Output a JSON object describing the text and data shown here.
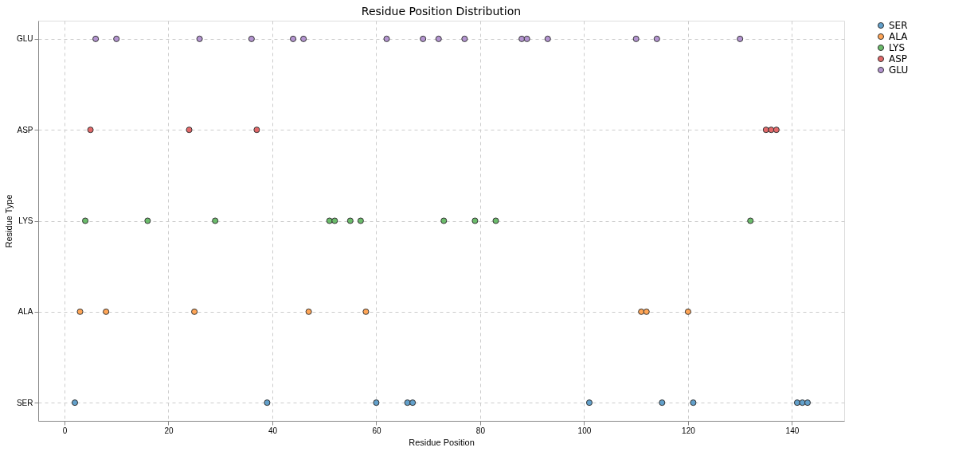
{
  "chart_data": {
    "type": "scatter",
    "title": "Residue Position Distribution",
    "xlabel": "Residue Position",
    "ylabel": "Residue Type",
    "orientation": "horizontal",
    "categories": [
      "GLU",
      "ASP",
      "LYS",
      "ALA",
      "SER"
    ],
    "xlim": [
      -5.05,
      150.05
    ],
    "xticks": [
      0,
      20,
      40,
      60,
      80,
      100,
      120,
      140
    ],
    "grid": true,
    "legend": "top right",
    "marker": "circle",
    "series": [
      {
        "name": "SER",
        "color": "#62a0cb",
        "x": [
          "SER",
          "SER",
          "SER",
          "SER",
          "SER",
          "SER",
          "SER",
          "SER",
          "SER",
          "SER",
          "SER"
        ],
        "values": [
          2,
          39,
          60,
          66,
          67,
          101,
          115,
          121,
          141,
          142,
          143
        ]
      },
      {
        "name": "ALA",
        "color": "#ffa556",
        "x": [
          "ALA",
          "ALA",
          "ALA",
          "ALA",
          "ALA",
          "ALA",
          "ALA",
          "ALA"
        ],
        "values": [
          3,
          8,
          25,
          47,
          58,
          111,
          112,
          120
        ]
      },
      {
        "name": "LYS",
        "color": "#6bbc6b",
        "x": [
          "LYS",
          "LYS",
          "LYS",
          "LYS",
          "LYS",
          "LYS",
          "LYS",
          "LYS",
          "LYS",
          "LYS",
          "LYS"
        ],
        "values": [
          4,
          16,
          29,
          51,
          52,
          55,
          57,
          73,
          79,
          83,
          132
        ]
      },
      {
        "name": "ASP",
        "color": "#e26869",
        "x": [
          "ASP",
          "ASP",
          "ASP",
          "ASP",
          "ASP",
          "ASP"
        ],
        "values": [
          5,
          24,
          37,
          135,
          136,
          137
        ]
      },
      {
        "name": "GLU",
        "color": "#b495d1",
        "x": [
          "GLU",
          "GLU",
          "GLU",
          "GLU",
          "GLU",
          "GLU",
          "GLU",
          "GLU",
          "GLU",
          "GLU",
          "GLU",
          "GLU",
          "GLU",
          "GLU",
          "GLU",
          "GLU"
        ],
        "values": [
          6,
          10,
          26,
          36,
          44,
          46,
          62,
          69,
          72,
          77,
          88,
          89,
          93,
          110,
          114,
          130
        ]
      }
    ]
  }
}
